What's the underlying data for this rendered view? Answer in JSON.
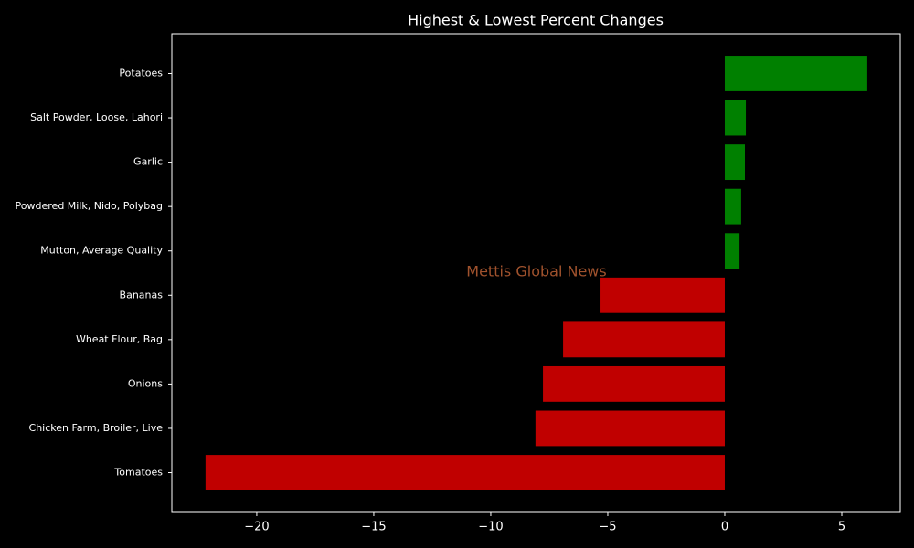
{
  "chart_data": {
    "type": "barh",
    "title": "Highest & Lowest Percent Changes",
    "categories": [
      "Potatoes",
      "Salt Powder, Loose, Lahori",
      "Garlic",
      "Powdered Milk, Nido, Polybag",
      "Mutton, Average Quality",
      "Bananas",
      "Wheat Flour, Bag",
      "Onions",
      "Chicken Farm, Broiler, Live",
      "Tomatoes"
    ],
    "values": [
      6.09,
      0.9,
      0.86,
      0.7,
      0.63,
      -5.31,
      -6.91,
      -7.77,
      -8.09,
      -22.19
    ],
    "colors": [
      "#008000",
      "#008000",
      "#008000",
      "#008000",
      "#008000",
      "#c00000",
      "#c00000",
      "#c00000",
      "#c00000",
      "#c00000"
    ],
    "xlim": [
      -23.63,
      7.5
    ],
    "xticks": [
      {
        "value": -20,
        "label": "−20"
      },
      {
        "value": -15,
        "label": "−15"
      },
      {
        "value": -10,
        "label": "−10"
      },
      {
        "value": -5,
        "label": "−5"
      },
      0,
      5
    ],
    "annotation": "Mettis Global News",
    "annotation_color": "#a0522d"
  }
}
